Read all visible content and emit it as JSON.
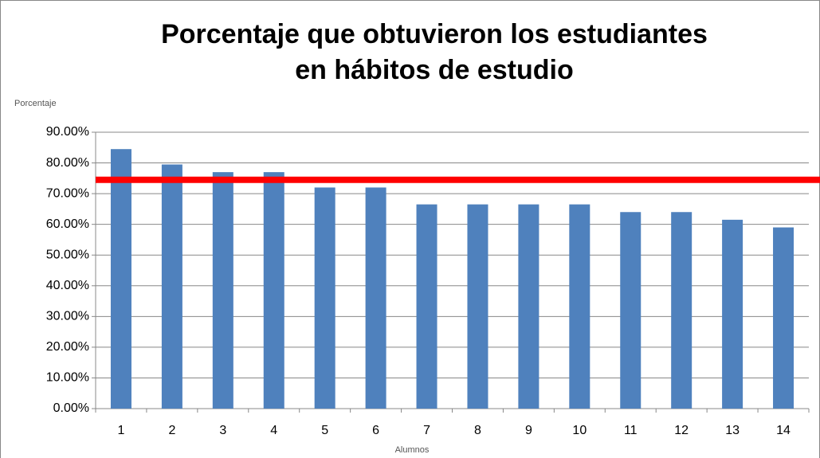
{
  "chart_data": {
    "type": "bar",
    "title": [
      "Porcentaje que obtuvieron los estudiantes",
      "en hábitos de estudio"
    ],
    "y_label": "Porcentaje",
    "x_label": "Alumnos",
    "categories": [
      "1",
      "2",
      "3",
      "4",
      "5",
      "6",
      "7",
      "8",
      "9",
      "10",
      "11",
      "12",
      "13",
      "14"
    ],
    "values": [
      84.5,
      79.5,
      77,
      77,
      72,
      72,
      66.5,
      66.5,
      66.5,
      66.5,
      64,
      64,
      61.5,
      59
    ],
    "color": "#4f81bd",
    "reference_line": {
      "value": 74.5,
      "color": "#ff0000"
    },
    "ylim": [
      0,
      90
    ],
    "yticks": [
      {
        "value": 0,
        "label": "0.00%"
      },
      {
        "value": 10,
        "label": "10.00%"
      },
      {
        "value": 20,
        "label": "20.00%"
      },
      {
        "value": 30,
        "label": "30.00%"
      },
      {
        "value": 40,
        "label": "40.00%"
      },
      {
        "value": 50,
        "label": "50.00%"
      },
      {
        "value": 60,
        "label": "60.00%"
      },
      {
        "value": 70,
        "label": "70.00%"
      },
      {
        "value": 80,
        "label": "80.00%"
      },
      {
        "value": 90,
        "label": "90.00%"
      }
    ],
    "grid": true
  }
}
